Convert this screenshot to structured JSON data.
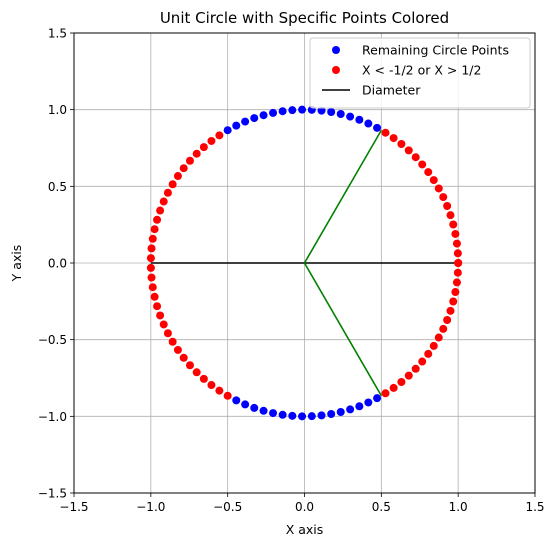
{
  "chart_data": {
    "type": "scatter",
    "title": "Unit Circle with Specific Points Colored",
    "xlabel": "X axis",
    "ylabel": "Y axis",
    "xlim": [
      -1.5,
      1.5
    ],
    "ylim": [
      -1.5,
      1.5
    ],
    "xticks": [
      -1.5,
      -1.0,
      -0.5,
      0.0,
      0.5,
      1.0,
      1.5
    ],
    "yticks": [
      -1.5,
      -1.0,
      -0.5,
      0.0,
      0.5,
      1.0,
      1.5
    ],
    "xtick_labels": [
      "−1.5",
      "−1.0",
      "−0.5",
      "0.0",
      "0.5",
      "1.0",
      "1.5"
    ],
    "ytick_labels": [
      "−1.5",
      "−1.0",
      "−0.5",
      "0.0",
      "0.5",
      "1.0",
      "1.5"
    ],
    "grid": true,
    "legend_position": "top-right",
    "point_count": 100,
    "series": [
      {
        "name": "Remaining Circle Points",
        "kind": "points",
        "color": "#0000ff",
        "condition": "-1/2 <= x <= 1/2"
      },
      {
        "name": "X < -1/2 or X > 1/2",
        "kind": "points",
        "color": "#ff0000",
        "condition": "x < -1/2 or x > 1/2"
      },
      {
        "name": "Diameter",
        "kind": "line",
        "color": "#000000",
        "x": [
          -1,
          1
        ],
        "y": [
          0,
          0
        ]
      }
    ],
    "extra_lines": [
      {
        "color": "#008000",
        "x": [
          0,
          0.5
        ],
        "y": [
          0,
          0.866
        ]
      },
      {
        "color": "#008000",
        "x": [
          0,
          0.5
        ],
        "y": [
          0,
          -0.866
        ]
      }
    ]
  }
}
